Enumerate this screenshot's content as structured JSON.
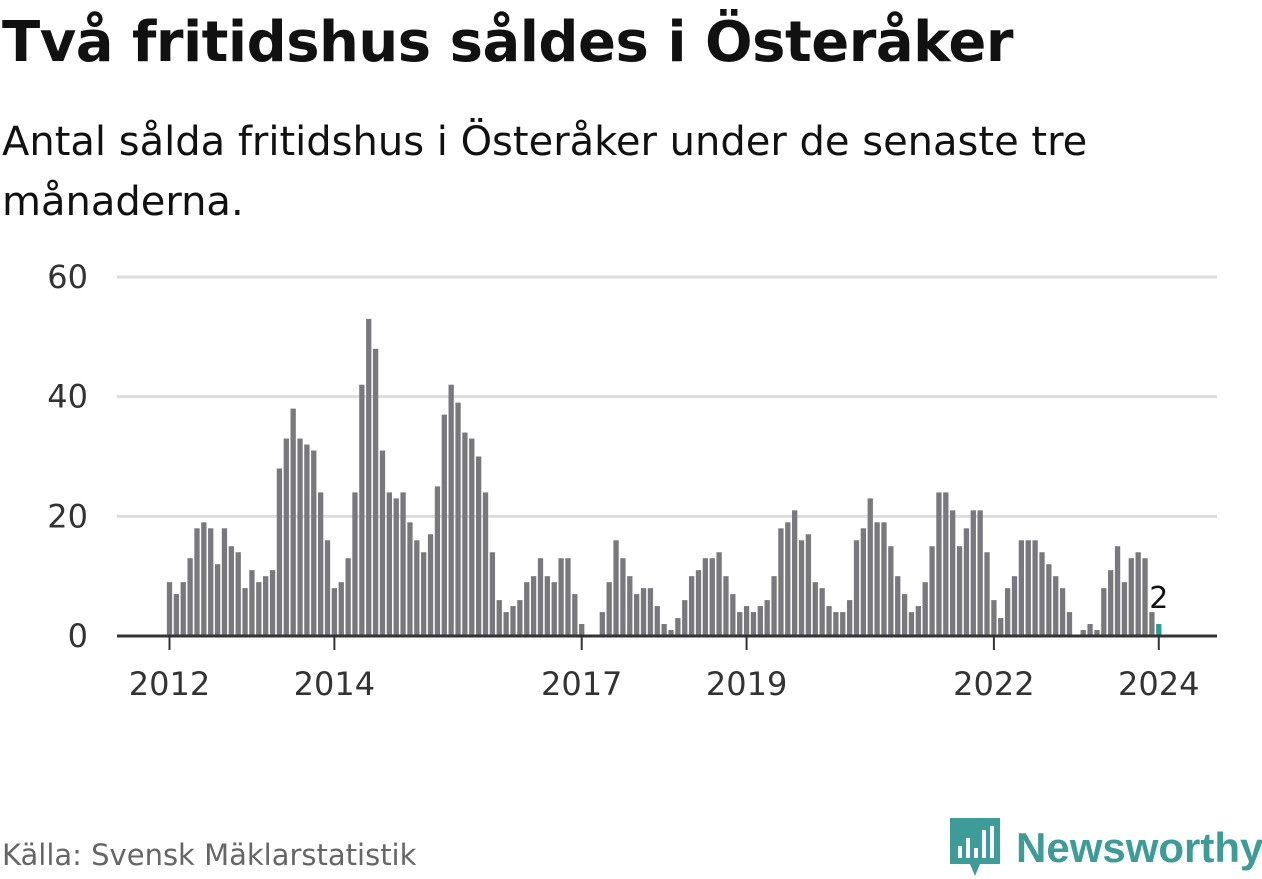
{
  "title": "Två fritidshus såldes i Österåker",
  "subtitle": "Antal sålda fritidshus i Österåker under de senaste tre månaderna.",
  "source": "Källa: Svensk Mäklarstatistik",
  "brand": "Newsworthy",
  "colors": {
    "bar": "#79787d",
    "highlight": "#2a9d8f",
    "grid": "#dddddd",
    "axis": "#333333",
    "brand": "#3d9b98"
  },
  "chart_data": {
    "type": "bar",
    "title": "Två fritidshus såldes i Österåker",
    "xlabel": "",
    "ylabel": "",
    "ylim": [
      0,
      60
    ],
    "yticks": [
      0,
      20,
      40,
      60
    ],
    "grid": true,
    "x_start": "2012-01",
    "x_ticks": [
      {
        "label": "2012",
        "month_index": 0
      },
      {
        "label": "2014",
        "month_index": 24
      },
      {
        "label": "2017",
        "month_index": 60
      },
      {
        "label": "2019",
        "month_index": 84
      },
      {
        "label": "2022",
        "month_index": 120
      },
      {
        "label": "2024",
        "month_index": 144
      }
    ],
    "values": [
      9,
      7,
      9,
      13,
      18,
      19,
      18,
      12,
      18,
      15,
      14,
      8,
      11,
      9,
      10,
      11,
      28,
      33,
      38,
      33,
      32,
      31,
      24,
      16,
      8,
      9,
      13,
      24,
      42,
      53,
      48,
      31,
      24,
      23,
      24,
      19,
      16,
      14,
      17,
      25,
      37,
      42,
      39,
      34,
      33,
      30,
      24,
      14,
      6,
      4,
      5,
      6,
      9,
      10,
      13,
      10,
      9,
      13,
      13,
      7,
      2,
      0,
      0,
      4,
      9,
      16,
      13,
      10,
      7,
      8,
      8,
      5,
      2,
      1,
      3,
      6,
      10,
      11,
      13,
      13,
      14,
      10,
      7,
      4,
      5,
      4,
      5,
      6,
      10,
      18,
      19,
      21,
      16,
      17,
      9,
      8,
      5,
      4,
      4,
      6,
      16,
      18,
      23,
      19,
      19,
      15,
      10,
      7,
      4,
      5,
      9,
      15,
      24,
      24,
      21,
      15,
      18,
      21,
      21,
      14,
      6,
      3,
      8,
      10,
      16,
      16,
      16,
      14,
      12,
      10,
      8,
      4,
      0,
      1,
      2,
      1,
      8,
      11,
      15,
      9,
      13,
      14,
      13,
      4,
      2
    ],
    "annotation": {
      "text": "2",
      "month_index": 144
    }
  }
}
